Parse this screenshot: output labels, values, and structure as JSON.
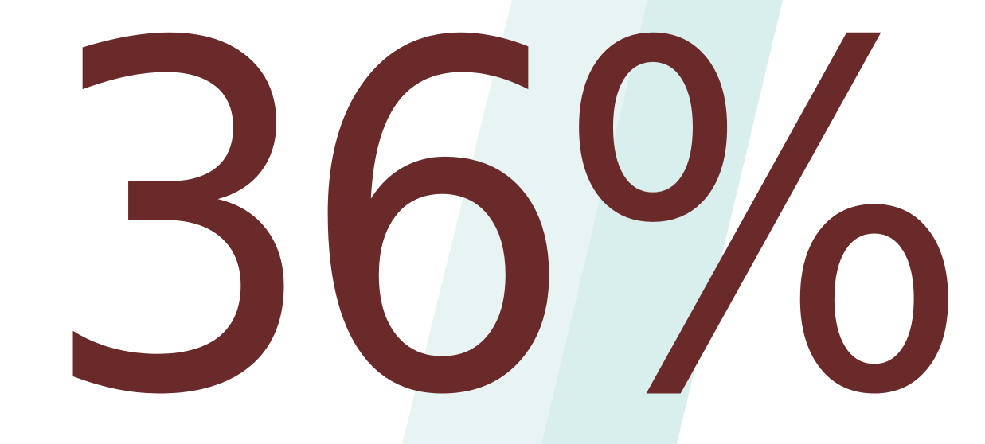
{
  "stat": {
    "value": "36%"
  },
  "colors": {
    "text": "#6b2a2a",
    "background": "#ffffff",
    "band_light": "#e8f4f3",
    "band_dark": "#d9efed"
  }
}
